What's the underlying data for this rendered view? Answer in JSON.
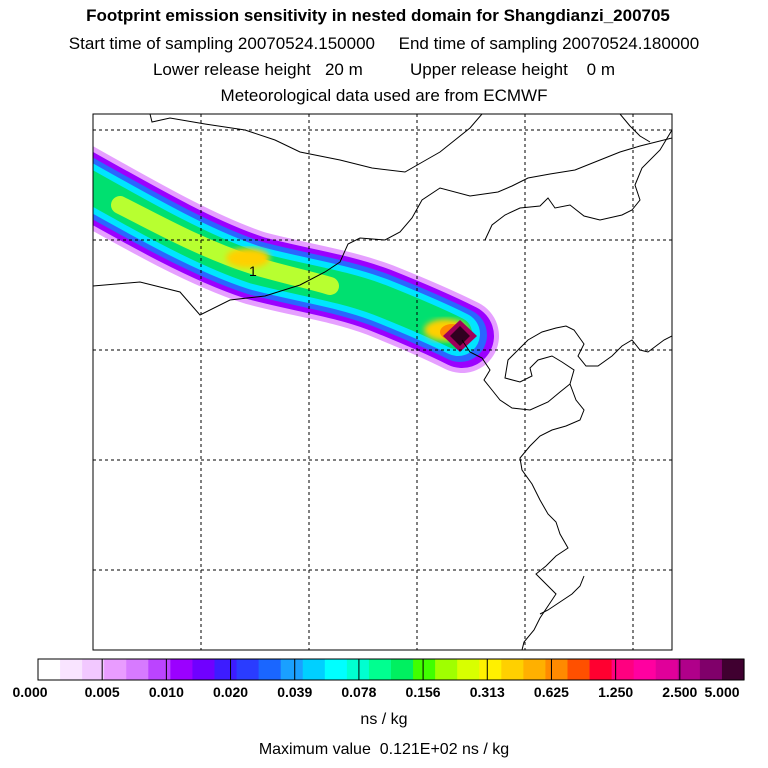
{
  "header": {
    "title": "Footprint emission sensitivity in nested domain for Shangdianzi_200705",
    "line2": "Start time of sampling 20070524.150000     End time of sampling 20070524.180000",
    "line3": "Lower release height   20 m          Upper release height    0 m",
    "line4": "Meteorological data used are from ECMWF"
  },
  "map": {
    "marker_label": "1",
    "plume_colors": [
      "#e6a0ff",
      "#9b00ff",
      "#2a66ff",
      "#00e5ff",
      "#00e070",
      "#b8ff30",
      "#ffd000",
      "#ff8a00",
      "#a0005a",
      "#300020"
    ]
  },
  "colorbar": {
    "colors": [
      "#ffffff",
      "#f9e4ff",
      "#f2c8ff",
      "#e99cff",
      "#d77aff",
      "#bb44ff",
      "#9b00ff",
      "#7000ff",
      "#3d1cff",
      "#2a3cff",
      "#1a66ff",
      "#1aa0ff",
      "#00d0ff",
      "#00ffff",
      "#00ffd0",
      "#00ff90",
      "#00f060",
      "#40ff00",
      "#a0ff00",
      "#d8ff00",
      "#fff000",
      "#ffd000",
      "#ffb000",
      "#ff8a00",
      "#ff5000",
      "#ff0030",
      "#ff0080",
      "#ff00a0",
      "#e0009a",
      "#b0008a",
      "#80006a",
      "#400030"
    ],
    "tick_labels": [
      "0.000",
      "0.005",
      "0.010",
      "0.020",
      "0.039",
      "0.078",
      "0.156",
      "0.313",
      "0.625",
      "1.250",
      "2.500",
      "5.000"
    ],
    "unit": "ns / kg"
  },
  "footer": {
    "max_value": "Maximum value  0.121E+02 ns / kg"
  }
}
